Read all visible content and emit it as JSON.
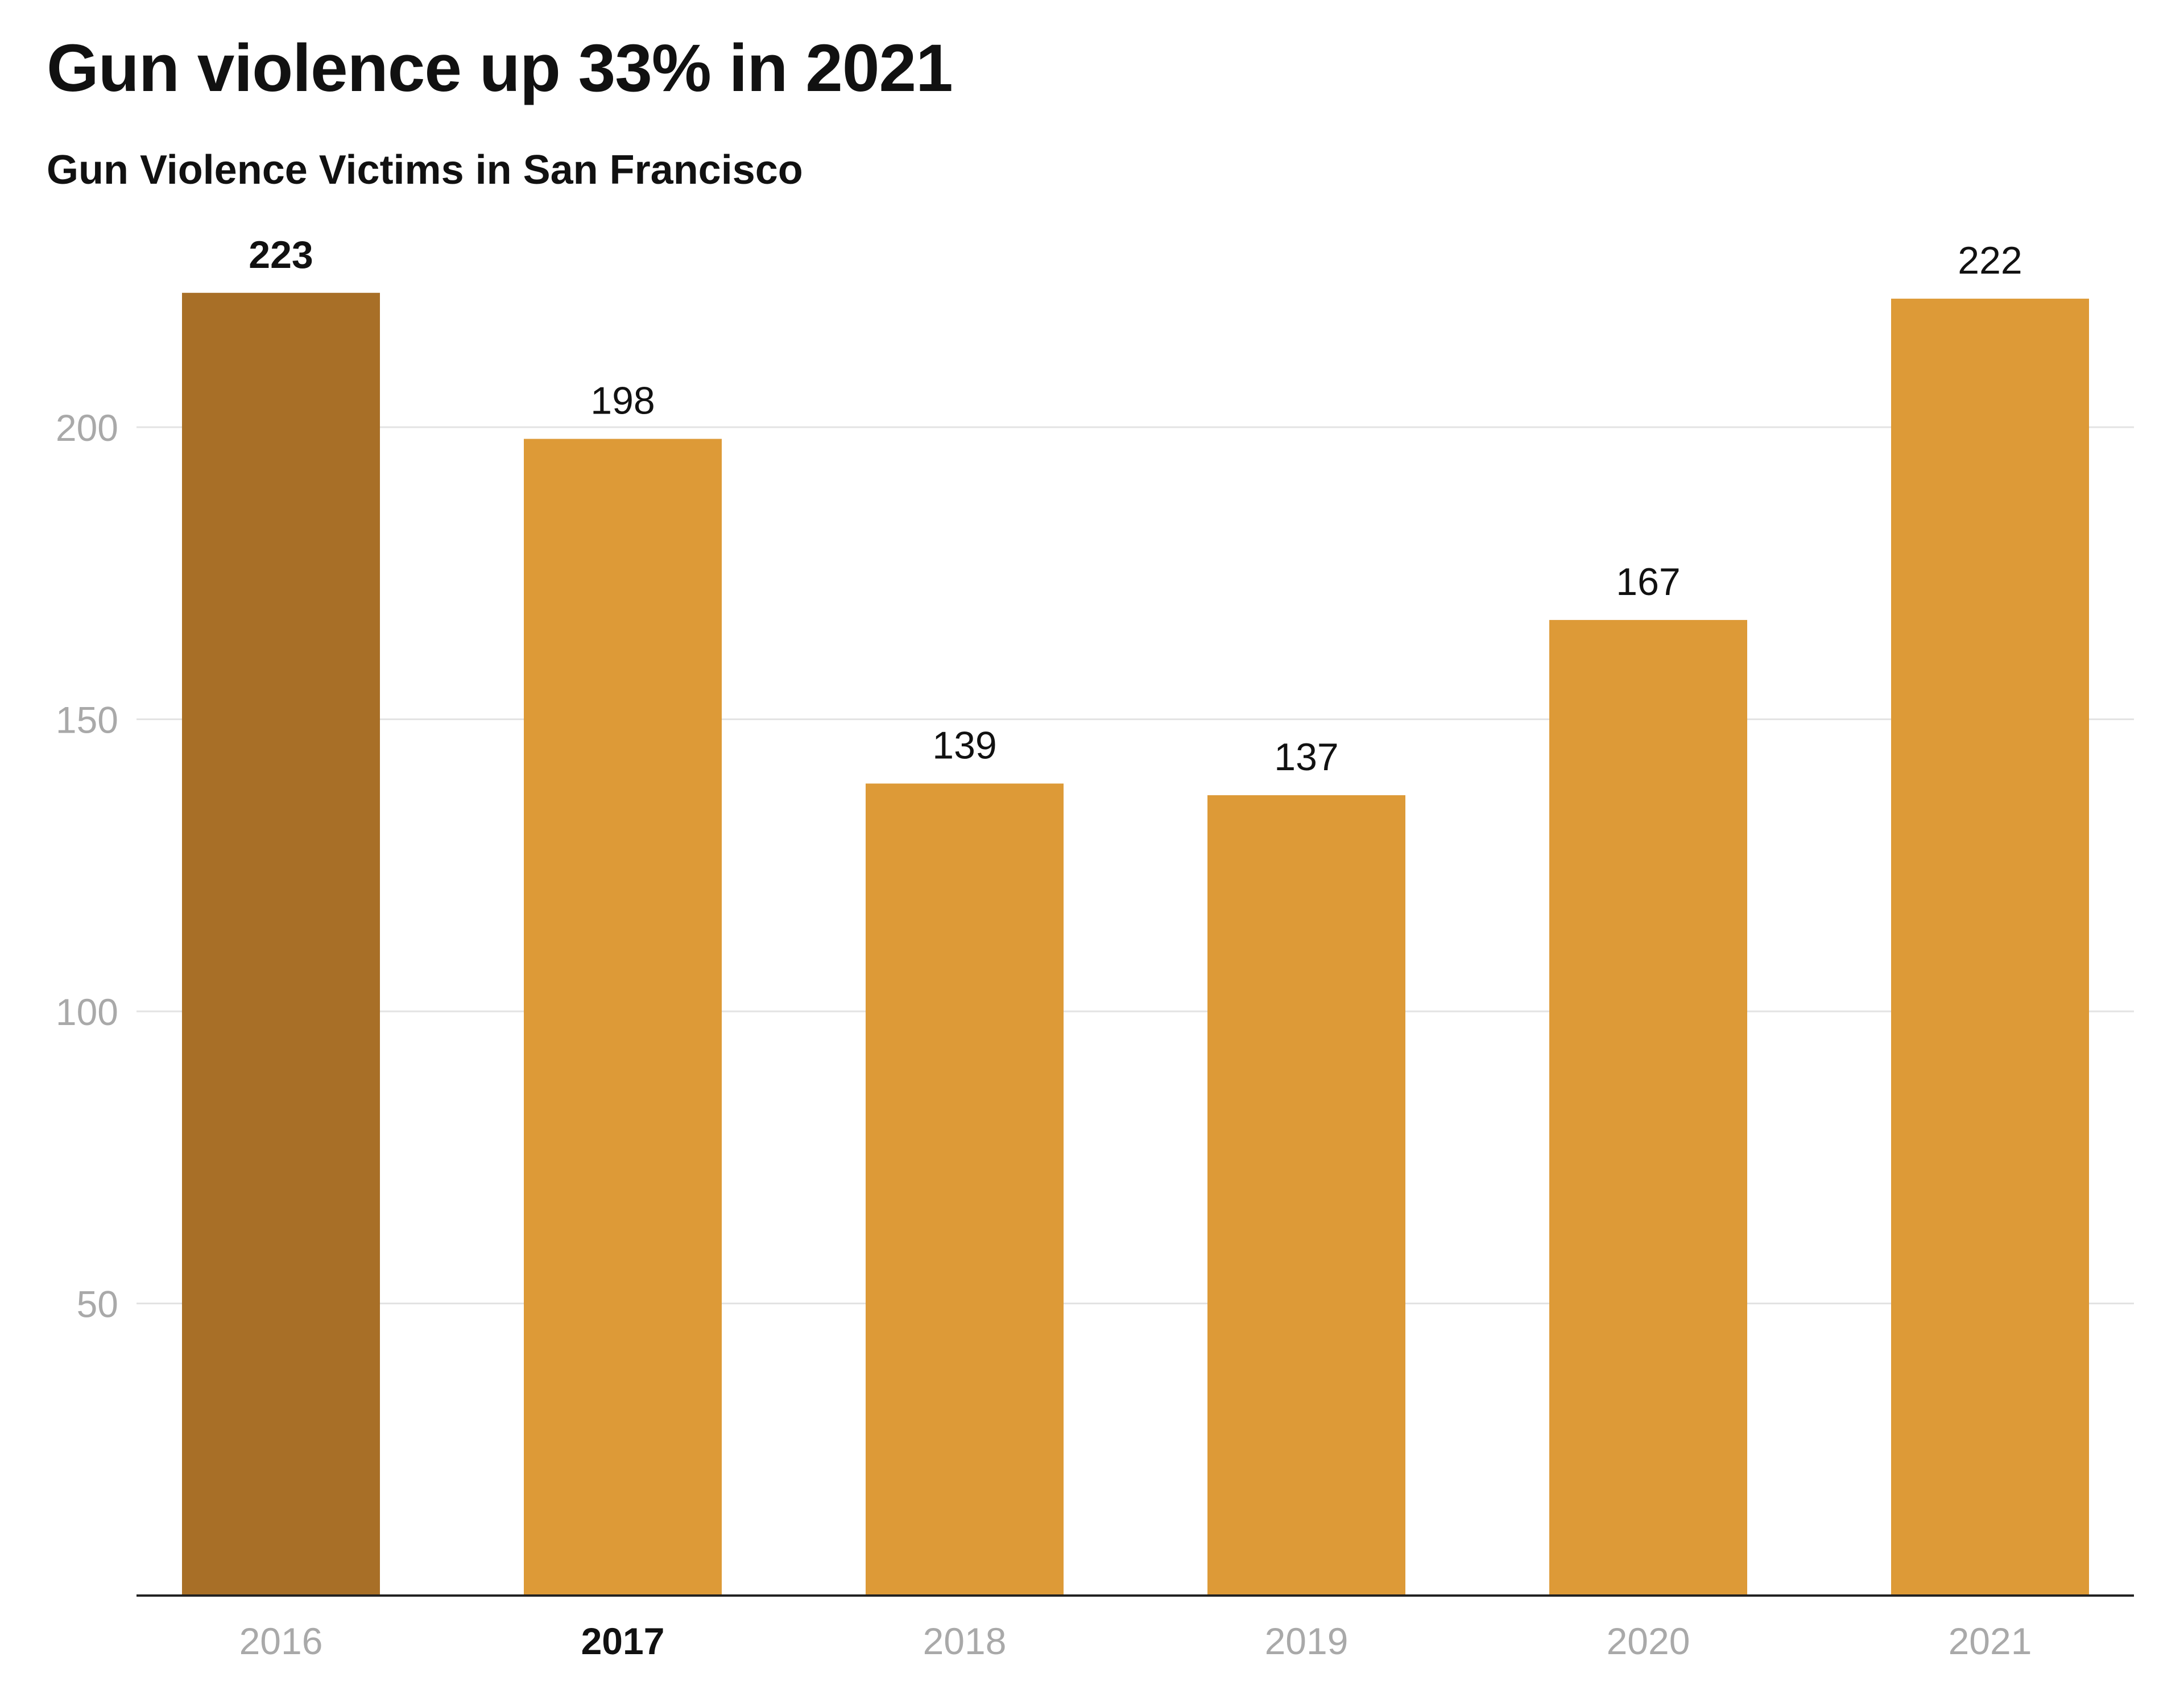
{
  "chart_data": {
    "type": "bar",
    "title": "Gun violence up 33% in 2021",
    "subtitle": "Gun Violence Victims in San Francisco",
    "categories": [
      "2016",
      "2017",
      "2018",
      "2019",
      "2020",
      "2021"
    ],
    "values": [
      223,
      198,
      139,
      137,
      167,
      222
    ],
    "highlighted_bar": "2016",
    "highlighted_tick": "2017",
    "xlabel": "",
    "ylabel": "",
    "ylim": [
      0,
      223
    ],
    "yticks": [
      50,
      100,
      150,
      200
    ],
    "grid": true,
    "colors": {
      "bar": "#DD9A37",
      "bar_highlight": "#A86F27",
      "grid": "#E3E3E3",
      "axis": "#222222",
      "tick_text": "#A9A9A9",
      "text": "#111111"
    }
  }
}
